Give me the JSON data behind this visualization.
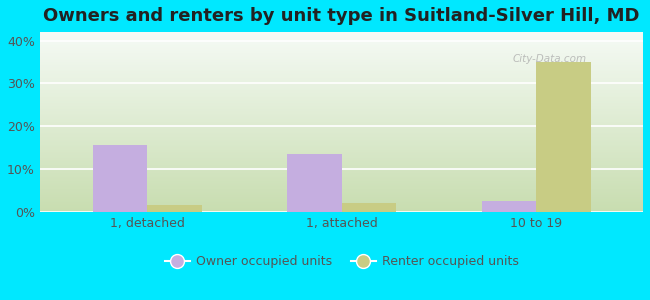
{
  "title": "Owners and renters by unit type in Suitland-Silver Hill, MD",
  "categories": [
    "1, detached",
    "1, attached",
    "10 to 19"
  ],
  "owner_values": [
    15.5,
    13.5,
    2.5
  ],
  "renter_values": [
    1.5,
    2.0,
    35.0
  ],
  "owner_color": "#c5aee0",
  "renter_color": "#c8cc84",
  "ylim": [
    0,
    42
  ],
  "yticks": [
    0,
    10,
    20,
    30,
    40
  ],
  "ytick_labels": [
    "0%",
    "10%",
    "20%",
    "30%",
    "40%"
  ],
  "fig_bg_color": "#00e8ff",
  "plot_bg_top": "#f5faf5",
  "plot_bg_bottom": "#c8ddb0",
  "bar_width": 0.28,
  "title_fontsize": 13,
  "legend_owner": "Owner occupied units",
  "legend_renter": "Renter occupied units",
  "watermark": "City-Data.com",
  "tick_color": "#555555",
  "grid_color": "#ffffff"
}
